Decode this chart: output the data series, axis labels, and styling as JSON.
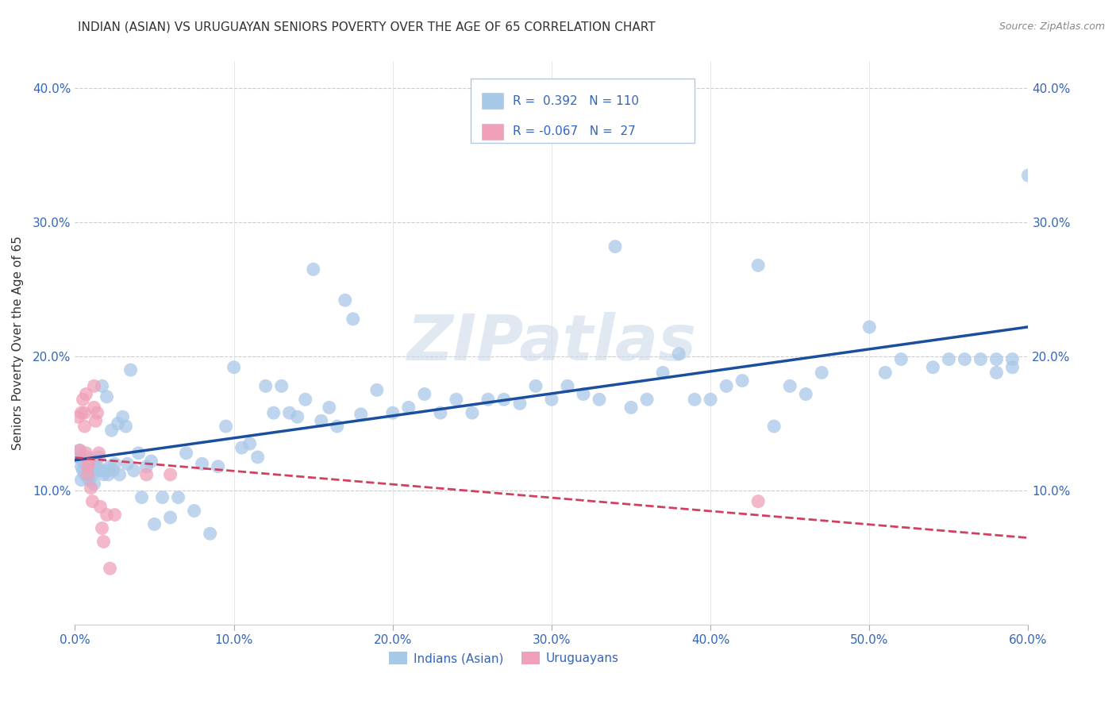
{
  "title": "INDIAN (ASIAN) VS URUGUAYAN SENIORS POVERTY OVER THE AGE OF 65 CORRELATION CHART",
  "source": "Source: ZipAtlas.com",
  "ylabel": "Seniors Poverty Over the Age of 65",
  "xlim": [
    0.0,
    0.6
  ],
  "ylim": [
    0.0,
    0.42
  ],
  "xticks": [
    0.0,
    0.1,
    0.2,
    0.3,
    0.4,
    0.5,
    0.6
  ],
  "yticks": [
    0.1,
    0.2,
    0.3,
    0.4
  ],
  "xticklabels": [
    "0.0%",
    "10.0%",
    "20.0%",
    "30.0%",
    "40.0%",
    "50.0%",
    "60.0%"
  ],
  "yticklabels": [
    "10.0%",
    "20.0%",
    "30.0%",
    "40.0%"
  ],
  "right_yticklabels": [
    "10.0%",
    "20.0%",
    "30.0%",
    "40.0%"
  ],
  "indian_color": "#a8c8e8",
  "uruguayan_color": "#f0a0b8",
  "indian_line_color": "#1a4fa0",
  "uruguayan_line_color": "#d04060",
  "indian_R": 0.392,
  "indian_N": 110,
  "uruguayan_R": -0.067,
  "uruguayan_N": 27,
  "watermark": "ZIPatlas",
  "legend_labels": [
    "Indians (Asian)",
    "Uruguayans"
  ],
  "indian_x": [
    0.002,
    0.003,
    0.004,
    0.004,
    0.005,
    0.005,
    0.006,
    0.006,
    0.007,
    0.008,
    0.008,
    0.009,
    0.009,
    0.01,
    0.01,
    0.011,
    0.012,
    0.012,
    0.013,
    0.014,
    0.015,
    0.016,
    0.017,
    0.018,
    0.019,
    0.02,
    0.021,
    0.022,
    0.023,
    0.024,
    0.025,
    0.027,
    0.028,
    0.03,
    0.032,
    0.033,
    0.035,
    0.037,
    0.04,
    0.042,
    0.045,
    0.048,
    0.05,
    0.055,
    0.06,
    0.065,
    0.07,
    0.075,
    0.08,
    0.085,
    0.09,
    0.095,
    0.1,
    0.105,
    0.11,
    0.115,
    0.12,
    0.125,
    0.13,
    0.135,
    0.14,
    0.145,
    0.15,
    0.155,
    0.16,
    0.165,
    0.17,
    0.175,
    0.18,
    0.19,
    0.2,
    0.21,
    0.22,
    0.23,
    0.24,
    0.25,
    0.26,
    0.27,
    0.28,
    0.29,
    0.3,
    0.31,
    0.32,
    0.33,
    0.34,
    0.35,
    0.36,
    0.37,
    0.38,
    0.39,
    0.4,
    0.41,
    0.42,
    0.43,
    0.44,
    0.45,
    0.46,
    0.47,
    0.5,
    0.51,
    0.52,
    0.54,
    0.55,
    0.56,
    0.57,
    0.58,
    0.59,
    0.6,
    0.58,
    0.59
  ],
  "indian_y": [
    0.125,
    0.13,
    0.118,
    0.108,
    0.122,
    0.115,
    0.12,
    0.112,
    0.118,
    0.125,
    0.11,
    0.122,
    0.108,
    0.118,
    0.115,
    0.112,
    0.12,
    0.105,
    0.115,
    0.118,
    0.125,
    0.115,
    0.178,
    0.112,
    0.115,
    0.17,
    0.112,
    0.118,
    0.145,
    0.115,
    0.12,
    0.15,
    0.112,
    0.155,
    0.148,
    0.12,
    0.19,
    0.115,
    0.128,
    0.095,
    0.118,
    0.122,
    0.075,
    0.095,
    0.08,
    0.095,
    0.128,
    0.085,
    0.12,
    0.068,
    0.118,
    0.148,
    0.192,
    0.132,
    0.135,
    0.125,
    0.178,
    0.158,
    0.178,
    0.158,
    0.155,
    0.168,
    0.265,
    0.152,
    0.162,
    0.148,
    0.242,
    0.228,
    0.157,
    0.175,
    0.158,
    0.162,
    0.172,
    0.158,
    0.168,
    0.158,
    0.168,
    0.168,
    0.165,
    0.178,
    0.168,
    0.178,
    0.172,
    0.168,
    0.282,
    0.162,
    0.168,
    0.188,
    0.202,
    0.168,
    0.168,
    0.178,
    0.182,
    0.268,
    0.148,
    0.178,
    0.172,
    0.188,
    0.222,
    0.188,
    0.198,
    0.192,
    0.198,
    0.198,
    0.198,
    0.198,
    0.198,
    0.335,
    0.188,
    0.192
  ],
  "uruguayan_x": [
    0.002,
    0.003,
    0.004,
    0.005,
    0.006,
    0.006,
    0.007,
    0.007,
    0.008,
    0.008,
    0.009,
    0.01,
    0.011,
    0.012,
    0.012,
    0.013,
    0.014,
    0.015,
    0.016,
    0.017,
    0.018,
    0.02,
    0.022,
    0.025,
    0.045,
    0.06,
    0.43
  ],
  "uruguayan_y": [
    0.155,
    0.13,
    0.158,
    0.168,
    0.158,
    0.148,
    0.172,
    0.128,
    0.118,
    0.112,
    0.122,
    0.102,
    0.092,
    0.178,
    0.162,
    0.152,
    0.158,
    0.128,
    0.088,
    0.072,
    0.062,
    0.082,
    0.042,
    0.082,
    0.112,
    0.112,
    0.092
  ]
}
